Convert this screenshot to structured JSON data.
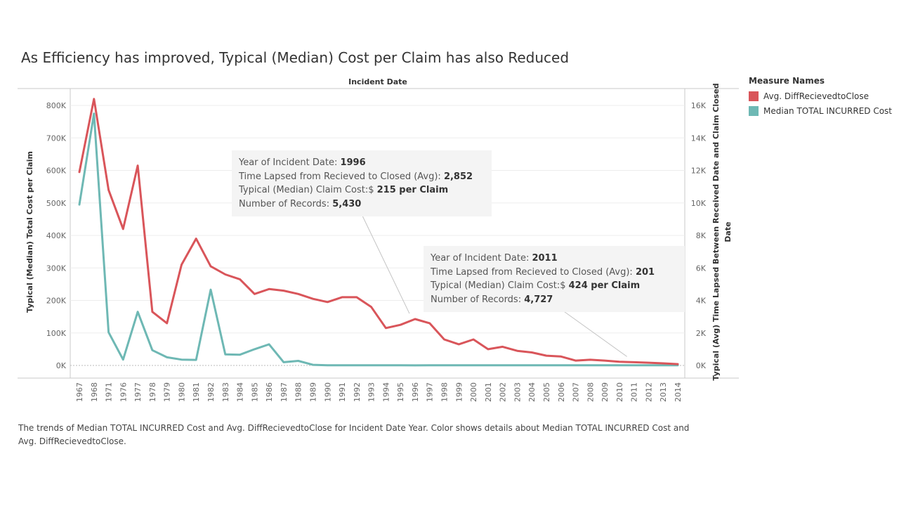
{
  "chart_data": {
    "type": "line",
    "title": "As Efficiency has improved, Typical (Median) Cost per Claim has also Reduced",
    "top_label": "Incident Date",
    "x": [
      "1967",
      "1968",
      "1971",
      "1976",
      "1977",
      "1978",
      "1979",
      "1980",
      "1981",
      "1982",
      "1983",
      "1984",
      "1985",
      "1986",
      "1987",
      "1988",
      "1989",
      "1990",
      "1991",
      "1992",
      "1993",
      "1994",
      "1995",
      "1996",
      "1997",
      "1998",
      "1999",
      "2000",
      "2001",
      "2002",
      "2003",
      "2004",
      "2005",
      "2006",
      "2007",
      "2008",
      "2009",
      "2010",
      "2011",
      "2012",
      "2013",
      "2014"
    ],
    "left_axis": {
      "label": "Typical (Median) Total Cost per Claim",
      "ticks": [
        "0K",
        "100K",
        "200K",
        "300K",
        "400K",
        "500K",
        "600K",
        "700K",
        "800K"
      ],
      "range": [
        0,
        800000
      ]
    },
    "right_axis": {
      "label_line1": "Typical (Avg) Time Lapsed Between Received Date and Claim Closed",
      "label_line2": "Date",
      "ticks": [
        "0K",
        "2K",
        "4K",
        "6K",
        "8K",
        "10K",
        "12K",
        "14K",
        "16K"
      ],
      "range": [
        0,
        16000
      ]
    },
    "series": [
      {
        "name": "Avg. DiffRecievedtoClose",
        "axis": "right",
        "color": "#d9555a",
        "values": [
          11900,
          16400,
          10800,
          8400,
          12300,
          3300,
          2600,
          6200,
          7800,
          6100,
          5600,
          5300,
          4400,
          4700,
          4600,
          4400,
          4100,
          3900,
          4200,
          4200,
          3600,
          2300,
          2500,
          2852,
          2600,
          1600,
          1300,
          1600,
          1000,
          1150,
          900,
          800,
          600,
          550,
          300,
          350,
          300,
          230,
          201,
          170,
          130,
          80
        ]
      },
      {
        "name": "Median TOTAL INCURRED Cost",
        "axis": "left",
        "color": "#6eb8b4",
        "values": [
          495000,
          775000,
          102000,
          18000,
          165000,
          47000,
          25000,
          18000,
          17000,
          233000,
          34000,
          33000,
          50000,
          65000,
          10000,
          14000,
          2000,
          500,
          400,
          400,
          400,
          400,
          400,
          215,
          400,
          400,
          400,
          400,
          400,
          400,
          400,
          400,
          400,
          400,
          400,
          400,
          400,
          400,
          424,
          400,
          400,
          400
        ]
      }
    ],
    "legend_title": "Measure Names",
    "legend_position": "right"
  },
  "tooltips": [
    {
      "l1": "Year of Incident Date: ",
      "v1": "1996",
      "l2": "Time Lapsed from Recieved to Closed (Avg): ",
      "v2": "2,852",
      "l3": "Typical (Median) Claim Cost:$ ",
      "v3": "215 per Claim",
      "l4": "Number of Records: ",
      "v4": "5,430"
    },
    {
      "l1": "Year of Incident Date: ",
      "v1": "2011",
      "l2": "Time Lapsed from Recieved to Closed (Avg): ",
      "v2": "201",
      "l3": "Typical (Median) Claim Cost:$ ",
      "v3": "424 per Claim",
      "l4": "Number of Records: ",
      "v4": "4,727"
    }
  ],
  "caption": "The trends of Median TOTAL INCURRED Cost and Avg. DiffRecievedtoClose for Incident Date Year.  Color shows details about Median TOTAL INCURRED Cost and Avg. DiffRecievedtoClose."
}
